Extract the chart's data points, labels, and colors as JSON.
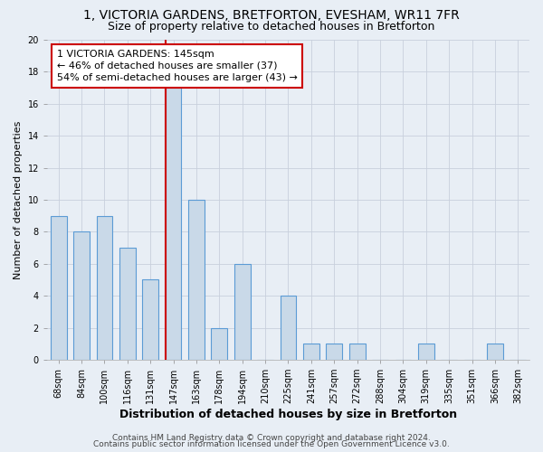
{
  "title": "1, VICTORIA GARDENS, BRETFORTON, EVESHAM, WR11 7FR",
  "subtitle": "Size of property relative to detached houses in Bretforton",
  "xlabel": "Distribution of detached houses by size in Bretforton",
  "ylabel": "Number of detached properties",
  "bin_labels": [
    "68sqm",
    "84sqm",
    "100sqm",
    "116sqm",
    "131sqm",
    "147sqm",
    "163sqm",
    "178sqm",
    "194sqm",
    "210sqm",
    "225sqm",
    "241sqm",
    "257sqm",
    "272sqm",
    "288sqm",
    "304sqm",
    "319sqm",
    "335sqm",
    "351sqm",
    "366sqm",
    "382sqm"
  ],
  "bar_heights": [
    9,
    8,
    9,
    7,
    5,
    17,
    10,
    2,
    6,
    0,
    4,
    1,
    1,
    1,
    0,
    0,
    1,
    0,
    0,
    1,
    0
  ],
  "bar_color": "#c9d9e8",
  "bar_edge_color": "#5b9bd5",
  "redline_bin_index": 5,
  "annotation_text": "1 VICTORIA GARDENS: 145sqm\n← 46% of detached houses are smaller (37)\n54% of semi-detached houses are larger (43) →",
  "annotation_box_color": "#ffffff",
  "annotation_box_edge_color": "#cc0000",
  "ylim": [
    0,
    20
  ],
  "yticks": [
    0,
    2,
    4,
    6,
    8,
    10,
    12,
    14,
    16,
    18,
    20
  ],
  "grid_color": "#c8d0dc",
  "background_color": "#e8eef5",
  "footer_line1": "Contains HM Land Registry data © Crown copyright and database right 2024.",
  "footer_line2": "Contains public sector information licensed under the Open Government Licence v3.0.",
  "title_fontsize": 10,
  "subtitle_fontsize": 9,
  "xlabel_fontsize": 9,
  "ylabel_fontsize": 8,
  "tick_fontsize": 7,
  "annotation_fontsize": 8,
  "footer_fontsize": 6.5
}
